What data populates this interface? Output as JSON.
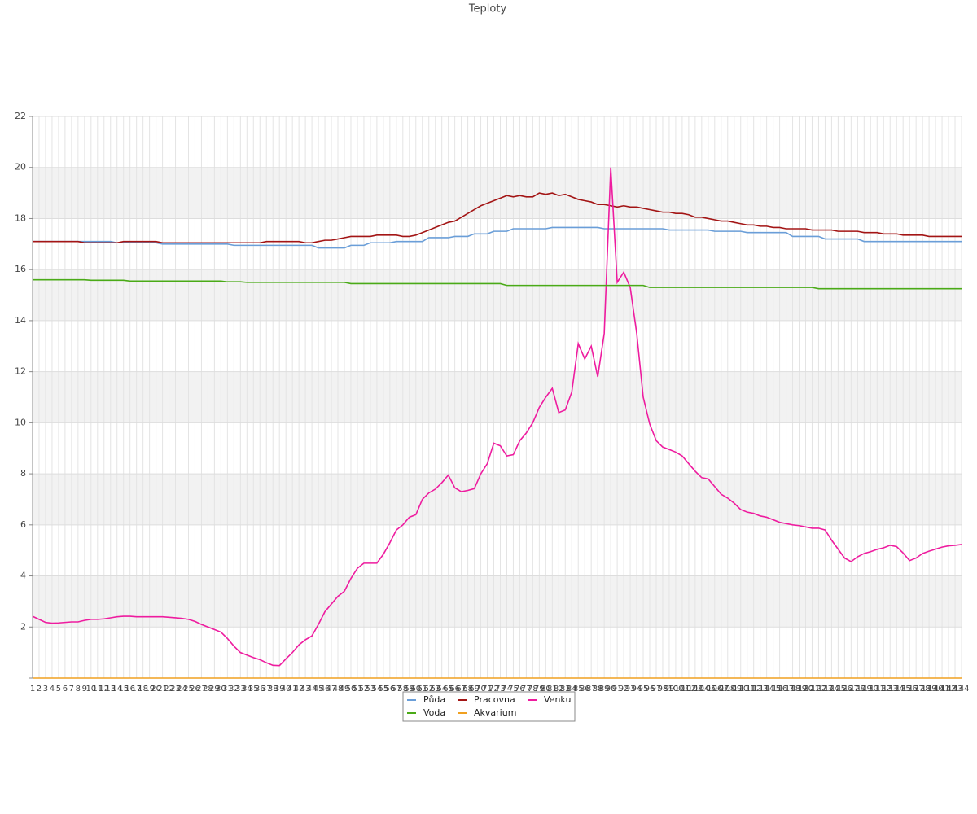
{
  "chart_data": {
    "type": "line",
    "title": "Teploty",
    "categories": [
      1,
      2,
      3,
      4,
      5,
      6,
      7,
      8,
      9,
      10,
      11,
      12,
      13,
      14,
      15,
      16,
      17,
      18,
      19,
      20,
      21,
      22,
      23,
      24,
      25,
      26,
      27,
      28,
      29,
      30,
      31,
      32,
      33,
      34,
      35,
      36,
      37,
      38,
      39,
      40,
      41,
      42,
      43,
      44,
      45,
      46,
      47,
      48,
      49,
      50,
      51,
      52,
      53,
      54,
      55,
      56,
      57,
      58,
      59,
      60,
      61,
      62,
      63,
      64,
      65,
      66,
      67,
      68,
      69,
      70,
      71,
      72,
      73,
      74,
      75,
      76,
      77,
      78,
      79,
      80,
      81,
      82,
      83,
      84,
      85,
      86,
      87,
      88,
      89,
      90,
      91,
      92,
      93,
      94,
      95,
      96,
      97,
      98,
      99,
      100,
      101,
      102,
      103,
      104,
      105,
      106,
      107,
      108,
      109,
      110,
      111,
      112,
      113,
      114,
      115,
      116,
      117,
      118,
      119,
      120,
      121,
      122,
      123,
      124,
      125,
      126,
      127,
      128,
      129,
      130,
      131,
      132,
      133,
      134,
      135,
      136,
      137,
      138,
      139,
      140,
      141,
      142,
      143,
      144
    ],
    "ylim": [
      0,
      22
    ],
    "yticks": [
      2,
      4,
      6,
      8,
      10,
      12,
      14,
      16,
      18,
      20,
      22
    ],
    "grid": true,
    "series": [
      {
        "name": "Půda",
        "color": "#6a9ed8",
        "values": [
          17.1,
          17.1,
          17.1,
          17.1,
          17.1,
          17.1,
          17.1,
          17.1,
          17.1,
          17.1,
          17.1,
          17.1,
          17.1,
          17.05,
          17.05,
          17.05,
          17.05,
          17.05,
          17.05,
          17.05,
          17.0,
          17.0,
          17.0,
          17.0,
          17.0,
          17.0,
          17.0,
          17.0,
          17.0,
          17.0,
          17.0,
          16.95,
          16.95,
          16.95,
          16.95,
          16.95,
          16.95,
          16.95,
          16.95,
          16.95,
          16.95,
          16.95,
          16.95,
          16.95,
          16.85,
          16.85,
          16.85,
          16.85,
          16.85,
          16.95,
          16.95,
          16.95,
          17.05,
          17.05,
          17.05,
          17.05,
          17.1,
          17.1,
          17.1,
          17.1,
          17.1,
          17.25,
          17.25,
          17.25,
          17.25,
          17.3,
          17.3,
          17.3,
          17.4,
          17.4,
          17.4,
          17.5,
          17.5,
          17.5,
          17.6,
          17.6,
          17.6,
          17.6,
          17.6,
          17.6,
          17.65,
          17.65,
          17.65,
          17.65,
          17.65,
          17.65,
          17.65,
          17.65,
          17.6,
          17.6,
          17.6,
          17.6,
          17.6,
          17.6,
          17.6,
          17.6,
          17.6,
          17.6,
          17.55,
          17.55,
          17.55,
          17.55,
          17.55,
          17.55,
          17.55,
          17.5,
          17.5,
          17.5,
          17.5,
          17.5,
          17.45,
          17.45,
          17.45,
          17.45,
          17.45,
          17.45,
          17.45,
          17.3,
          17.3,
          17.3,
          17.3,
          17.3,
          17.2,
          17.2,
          17.2,
          17.2,
          17.2,
          17.2,
          17.1,
          17.1,
          17.1,
          17.1,
          17.1,
          17.1,
          17.1,
          17.1,
          17.1,
          17.1,
          17.1,
          17.1,
          17.1,
          17.1,
          17.1,
          17.1
        ]
      },
      {
        "name": "Pracovna",
        "color": "#a31515",
        "values": [
          17.1,
          17.1,
          17.1,
          17.1,
          17.1,
          17.1,
          17.1,
          17.1,
          17.05,
          17.05,
          17.05,
          17.05,
          17.05,
          17.05,
          17.1,
          17.1,
          17.1,
          17.1,
          17.1,
          17.1,
          17.05,
          17.05,
          17.05,
          17.05,
          17.05,
          17.05,
          17.05,
          17.05,
          17.05,
          17.05,
          17.05,
          17.05,
          17.05,
          17.05,
          17.05,
          17.05,
          17.1,
          17.1,
          17.1,
          17.1,
          17.1,
          17.1,
          17.05,
          17.05,
          17.1,
          17.15,
          17.15,
          17.2,
          17.25,
          17.3,
          17.3,
          17.3,
          17.3,
          17.35,
          17.35,
          17.35,
          17.35,
          17.3,
          17.3,
          17.35,
          17.45,
          17.55,
          17.65,
          17.75,
          17.85,
          17.9,
          18.05,
          18.2,
          18.35,
          18.5,
          18.6,
          18.7,
          18.8,
          18.9,
          18.85,
          18.9,
          18.85,
          18.85,
          19.0,
          18.95,
          19.0,
          18.9,
          18.95,
          18.85,
          18.75,
          18.7,
          18.65,
          18.55,
          18.55,
          18.5,
          18.45,
          18.5,
          18.45,
          18.45,
          18.4,
          18.35,
          18.3,
          18.25,
          18.25,
          18.2,
          18.2,
          18.15,
          18.05,
          18.05,
          18.0,
          17.95,
          17.9,
          17.9,
          17.85,
          17.8,
          17.75,
          17.75,
          17.7,
          17.7,
          17.65,
          17.65,
          17.6,
          17.6,
          17.6,
          17.6,
          17.55,
          17.55,
          17.55,
          17.55,
          17.5,
          17.5,
          17.5,
          17.5,
          17.45,
          17.45,
          17.45,
          17.4,
          17.4,
          17.4,
          17.35,
          17.35,
          17.35,
          17.35,
          17.3,
          17.3,
          17.3,
          17.3,
          17.3,
          17.3
        ]
      },
      {
        "name": "Venku",
        "color": "#ee1c9f",
        "values": [
          2.42,
          2.3,
          2.18,
          2.15,
          2.16,
          2.18,
          2.2,
          2.2,
          2.26,
          2.3,
          2.3,
          2.32,
          2.36,
          2.4,
          2.42,
          2.42,
          2.4,
          2.4,
          2.4,
          2.4,
          2.4,
          2.38,
          2.36,
          2.34,
          2.3,
          2.22,
          2.1,
          2.0,
          1.9,
          1.8,
          1.55,
          1.25,
          1.0,
          0.9,
          0.8,
          0.72,
          0.6,
          0.5,
          0.49,
          0.75,
          1.0,
          1.3,
          1.5,
          1.65,
          2.1,
          2.6,
          2.9,
          3.2,
          3.4,
          3.9,
          4.3,
          4.5,
          4.5,
          4.5,
          4.85,
          5.3,
          5.8,
          6.0,
          6.3,
          6.4,
          7.0,
          7.25,
          7.4,
          7.65,
          7.95,
          7.45,
          7.3,
          7.35,
          7.42,
          8.0,
          8.4,
          9.2,
          9.1,
          8.7,
          8.75,
          9.3,
          9.6,
          10.0,
          10.6,
          11.0,
          11.35,
          10.4,
          10.5,
          11.2,
          13.1,
          12.5,
          13.0,
          11.8,
          13.5,
          20.0,
          15.5,
          15.9,
          15.3,
          13.5,
          11.0,
          9.95,
          9.3,
          9.05,
          8.95,
          8.85,
          8.7,
          8.4,
          8.1,
          7.85,
          7.8,
          7.5,
          7.2,
          7.05,
          6.85,
          6.6,
          6.5,
          6.45,
          6.35,
          6.3,
          6.2,
          6.1,
          6.05,
          6.0,
          5.97,
          5.92,
          5.87,
          5.87,
          5.8,
          5.4,
          5.05,
          4.7,
          4.56,
          4.75,
          4.88,
          4.95,
          5.04,
          5.1,
          5.2,
          5.15,
          4.9,
          4.6,
          4.7,
          4.88,
          4.97,
          5.05,
          5.13,
          5.18,
          5.2,
          5.23
        ]
      },
      {
        "name": "Voda",
        "color": "#4aaa17",
        "values": [
          15.6,
          15.6,
          15.6,
          15.6,
          15.6,
          15.6,
          15.6,
          15.6,
          15.6,
          15.58,
          15.58,
          15.58,
          15.58,
          15.58,
          15.58,
          15.55,
          15.55,
          15.55,
          15.55,
          15.55,
          15.55,
          15.55,
          15.55,
          15.55,
          15.55,
          15.55,
          15.55,
          15.55,
          15.55,
          15.55,
          15.52,
          15.52,
          15.52,
          15.5,
          15.5,
          15.5,
          15.5,
          15.5,
          15.5,
          15.5,
          15.5,
          15.5,
          15.5,
          15.5,
          15.5,
          15.5,
          15.5,
          15.5,
          15.5,
          15.45,
          15.45,
          15.45,
          15.45,
          15.45,
          15.45,
          15.45,
          15.45,
          15.45,
          15.45,
          15.45,
          15.45,
          15.45,
          15.45,
          15.45,
          15.45,
          15.45,
          15.45,
          15.45,
          15.45,
          15.45,
          15.45,
          15.45,
          15.45,
          15.38,
          15.38,
          15.38,
          15.38,
          15.38,
          15.38,
          15.38,
          15.38,
          15.38,
          15.38,
          15.38,
          15.38,
          15.38,
          15.38,
          15.38,
          15.38,
          15.38,
          15.38,
          15.38,
          15.38,
          15.38,
          15.38,
          15.3,
          15.3,
          15.3,
          15.3,
          15.3,
          15.3,
          15.3,
          15.3,
          15.3,
          15.3,
          15.3,
          15.3,
          15.3,
          15.3,
          15.3,
          15.3,
          15.3,
          15.3,
          15.3,
          15.3,
          15.3,
          15.3,
          15.3,
          15.3,
          15.3,
          15.3,
          15.25,
          15.25,
          15.25,
          15.25,
          15.25,
          15.25,
          15.25,
          15.25,
          15.25,
          15.25,
          15.25,
          15.25,
          15.25,
          15.25,
          15.25,
          15.25,
          15.25,
          15.25,
          15.25,
          15.25,
          15.25,
          15.25,
          15.25
        ]
      },
      {
        "name": "Akvarium",
        "color": "#f0a020",
        "values": [
          0,
          0,
          0,
          0,
          0,
          0,
          0,
          0,
          0,
          0,
          0,
          0,
          0,
          0,
          0,
          0,
          0,
          0,
          0,
          0,
          0,
          0,
          0,
          0,
          0,
          0,
          0,
          0,
          0,
          0,
          0,
          0,
          0,
          0,
          0,
          0,
          0,
          0,
          0,
          0,
          0,
          0,
          0,
          0,
          0,
          0,
          0,
          0,
          0,
          0,
          0,
          0,
          0,
          0,
          0,
          0,
          0,
          0,
          0,
          0,
          0,
          0,
          0,
          0,
          0,
          0,
          0,
          0,
          0,
          0,
          0,
          0,
          0,
          0,
          0,
          0,
          0,
          0,
          0,
          0,
          0,
          0,
          0,
          0,
          0,
          0,
          0,
          0,
          0,
          0,
          0,
          0,
          0,
          0,
          0,
          0,
          0,
          0,
          0,
          0,
          0,
          0,
          0,
          0,
          0,
          0,
          0,
          0,
          0,
          0,
          0,
          0,
          0,
          0,
          0,
          0,
          0,
          0,
          0,
          0,
          0,
          0,
          0,
          0,
          0,
          0,
          0,
          0,
          0,
          0,
          0,
          0,
          0,
          0,
          0,
          0,
          0,
          0,
          0,
          0,
          0,
          0,
          0,
          0
        ]
      }
    ]
  }
}
